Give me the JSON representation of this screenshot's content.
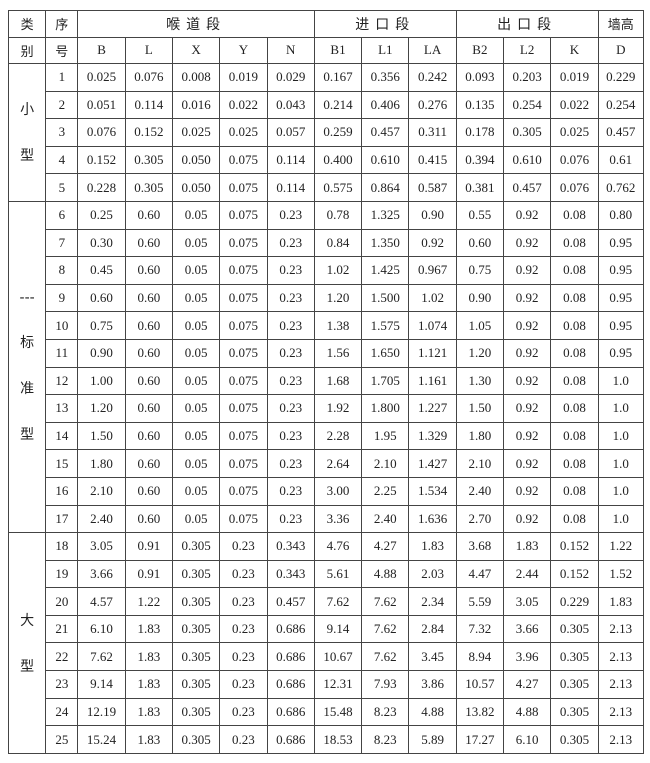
{
  "header": {
    "category": [
      "类",
      "别"
    ],
    "index": [
      "序",
      "号"
    ],
    "groups": [
      "喉道段",
      "进口段",
      "出口段",
      "墙高"
    ],
    "columns": [
      "B",
      "L",
      "X",
      "Y",
      "N",
      "B1",
      "L1",
      "LA",
      "B2",
      "L2",
      "K",
      "D"
    ]
  },
  "categories": [
    {
      "label": [
        "小",
        "型"
      ],
      "rows": 5
    },
    {
      "label": [
        "---",
        "标",
        "准",
        "型"
      ],
      "rows": 12
    },
    {
      "label": [
        "大",
        "型"
      ],
      "rows": 8
    }
  ],
  "rows": [
    [
      "1",
      "0.025",
      "0.076",
      "0.008",
      "0.019",
      "0.029",
      "0.167",
      "0.356",
      "0.242",
      "0.093",
      "0.203",
      "0.019",
      "0.229"
    ],
    [
      "2",
      "0.051",
      "0.114",
      "0.016",
      "0.022",
      "0.043",
      "0.214",
      "0.406",
      "0.276",
      "0.135",
      "0.254",
      "0.022",
      "0.254"
    ],
    [
      "3",
      "0.076",
      "0.152",
      "0.025",
      "0.025",
      "0.057",
      "0.259",
      "0.457",
      "0.311",
      "0.178",
      "0.305",
      "0.025",
      "0.457"
    ],
    [
      "4",
      "0.152",
      "0.305",
      "0.050",
      "0.075",
      "0.114",
      "0.400",
      "0.610",
      "0.415",
      "0.394",
      "0.610",
      "0.076",
      "0.61"
    ],
    [
      "5",
      "0.228",
      "0.305",
      "0.050",
      "0.075",
      "0.114",
      "0.575",
      "0.864",
      "0.587",
      "0.381",
      "0.457",
      "0.076",
      "0.762"
    ],
    [
      "6",
      "0.25",
      "0.60",
      "0.05",
      "0.075",
      "0.23",
      "0.78",
      "1.325",
      "0.90",
      "0.55",
      "0.92",
      "0.08",
      "0.80"
    ],
    [
      "7",
      "0.30",
      "0.60",
      "0.05",
      "0.075",
      "0.23",
      "0.84",
      "1.350",
      "0.92",
      "0.60",
      "0.92",
      "0.08",
      "0.95"
    ],
    [
      "8",
      "0.45",
      "0.60",
      "0.05",
      "0.075",
      "0.23",
      "1.02",
      "1.425",
      "0.967",
      "0.75",
      "0.92",
      "0.08",
      "0.95"
    ],
    [
      "9",
      "0.60",
      "0.60",
      "0.05",
      "0.075",
      "0.23",
      "1.20",
      "1.500",
      "1.02",
      "0.90",
      "0.92",
      "0.08",
      "0.95"
    ],
    [
      "10",
      "0.75",
      "0.60",
      "0.05",
      "0.075",
      "0.23",
      "1.38",
      "1.575",
      "1.074",
      "1.05",
      "0.92",
      "0.08",
      "0.95"
    ],
    [
      "11",
      "0.90",
      "0.60",
      "0.05",
      "0.075",
      "0.23",
      "1.56",
      "1.650",
      "1.121",
      "1.20",
      "0.92",
      "0.08",
      "0.95"
    ],
    [
      "12",
      "1.00",
      "0.60",
      "0.05",
      "0.075",
      "0.23",
      "1.68",
      "1.705",
      "1.161",
      "1.30",
      "0.92",
      "0.08",
      "1.0"
    ],
    [
      "13",
      "1.20",
      "0.60",
      "0.05",
      "0.075",
      "0.23",
      "1.92",
      "1.800",
      "1.227",
      "1.50",
      "0.92",
      "0.08",
      "1.0"
    ],
    [
      "14",
      "1.50",
      "0.60",
      "0.05",
      "0.075",
      "0.23",
      "2.28",
      "1.95",
      "1.329",
      "1.80",
      "0.92",
      "0.08",
      "1.0"
    ],
    [
      "15",
      "1.80",
      "0.60",
      "0.05",
      "0.075",
      "0.23",
      "2.64",
      "2.10",
      "1.427",
      "2.10",
      "0.92",
      "0.08",
      "1.0"
    ],
    [
      "16",
      "2.10",
      "0.60",
      "0.05",
      "0.075",
      "0.23",
      "3.00",
      "2.25",
      "1.534",
      "2.40",
      "0.92",
      "0.08",
      "1.0"
    ],
    [
      "17",
      "2.40",
      "0.60",
      "0.05",
      "0.075",
      "0.23",
      "3.36",
      "2.40",
      "1.636",
      "2.70",
      "0.92",
      "0.08",
      "1.0"
    ],
    [
      "18",
      "3.05",
      "0.91",
      "0.305",
      "0.23",
      "0.343",
      "4.76",
      "4.27",
      "1.83",
      "3.68",
      "1.83",
      "0.152",
      "1.22"
    ],
    [
      "19",
      "3.66",
      "0.91",
      "0.305",
      "0.23",
      "0.343",
      "5.61",
      "4.88",
      "2.03",
      "4.47",
      "2.44",
      "0.152",
      "1.52"
    ],
    [
      "20",
      "4.57",
      "1.22",
      "0.305",
      "0.23",
      "0.457",
      "7.62",
      "7.62",
      "2.34",
      "5.59",
      "3.05",
      "0.229",
      "1.83"
    ],
    [
      "21",
      "6.10",
      "1.83",
      "0.305",
      "0.23",
      "0.686",
      "9.14",
      "7.62",
      "2.84",
      "7.32",
      "3.66",
      "0.305",
      "2.13"
    ],
    [
      "22",
      "7.62",
      "1.83",
      "0.305",
      "0.23",
      "0.686",
      "10.67",
      "7.62",
      "3.45",
      "8.94",
      "3.96",
      "0.305",
      "2.13"
    ],
    [
      "23",
      "9.14",
      "1.83",
      "0.305",
      "0.23",
      "0.686",
      "12.31",
      "7.93",
      "3.86",
      "10.57",
      "4.27",
      "0.305",
      "2.13"
    ],
    [
      "24",
      "12.19",
      "1.83",
      "0.305",
      "0.23",
      "0.686",
      "15.48",
      "8.23",
      "4.88",
      "13.82",
      "4.88",
      "0.305",
      "2.13"
    ],
    [
      "25",
      "15.24",
      "1.83",
      "0.305",
      "0.23",
      "0.686",
      "18.53",
      "8.23",
      "5.89",
      "17.27",
      "6.10",
      "0.305",
      "2.13"
    ]
  ]
}
